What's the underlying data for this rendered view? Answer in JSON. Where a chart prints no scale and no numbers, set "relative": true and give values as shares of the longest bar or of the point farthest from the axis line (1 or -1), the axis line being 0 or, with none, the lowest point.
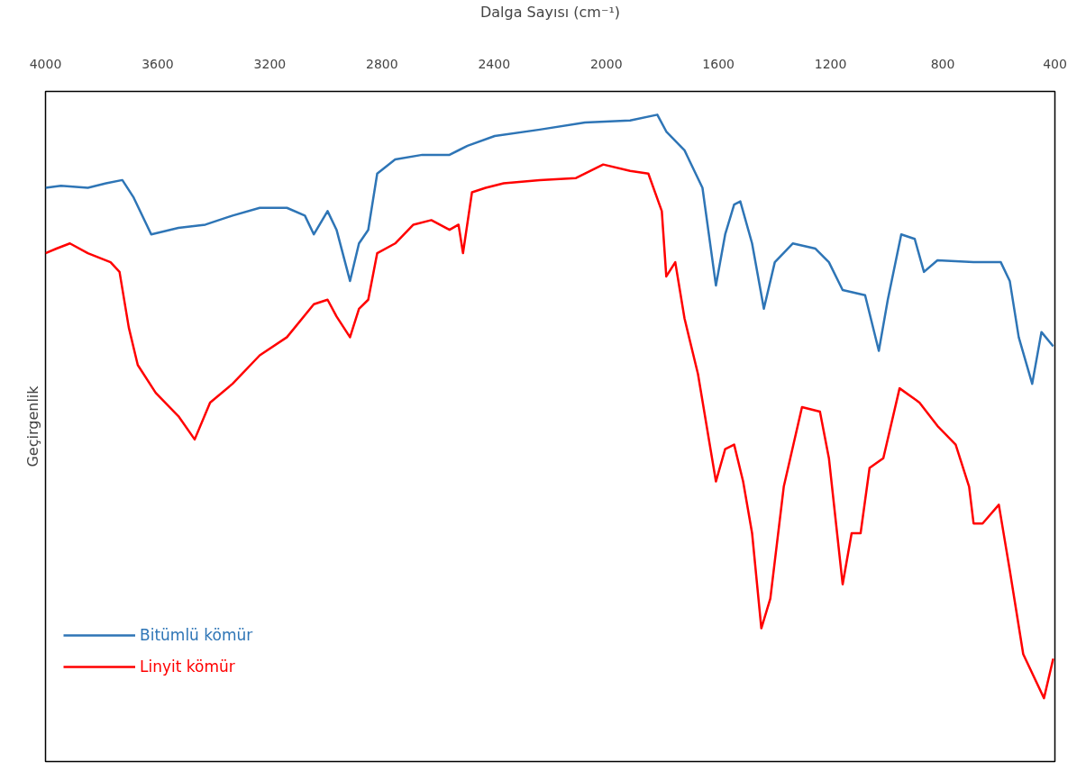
{
  "chart_data": {
    "type": "line",
    "xlabel": "Dalga Sayısı (cm⁻¹)",
    "ylabel": "Geçirgenlik",
    "relative": true,
    "xlim": [
      4000,
      400
    ],
    "xticks": [
      4000,
      3600,
      3200,
      2800,
      2400,
      2000,
      1600,
      1200,
      800,
      400
    ],
    "tick_labels": "x",
    "grid": false,
    "legend": "bottom left",
    "marker": "none",
    "line_style": "solid",
    "series": [
      {
        "name": "Bitümlü kömür",
        "color": "#2e75b6",
        "x": [
          4000,
          3945,
          3849,
          3784,
          3726,
          3687,
          3623,
          3526,
          3430,
          3333,
          3236,
          3139,
          3075,
          3043,
          2994,
          2962,
          2914,
          2882,
          2849,
          2817,
          2753,
          2656,
          2559,
          2495,
          2398,
          2237,
          2076,
          1915,
          1818,
          1786,
          1721,
          1657,
          1609,
          1576,
          1544,
          1522,
          1480,
          1438,
          1399,
          1335,
          1254,
          1206,
          1157,
          1077,
          1028,
          996,
          948,
          900,
          867,
          819,
          690,
          593,
          561,
          529,
          481,
          448,
          406
        ],
        "values": [
          0.887,
          0.89,
          0.887,
          0.894,
          0.899,
          0.873,
          0.815,
          0.825,
          0.83,
          0.844,
          0.856,
          0.856,
          0.844,
          0.815,
          0.851,
          0.822,
          0.743,
          0.801,
          0.822,
          0.909,
          0.931,
          0.938,
          0.938,
          0.952,
          0.967,
          0.977,
          0.988,
          0.991,
          1.0,
          0.974,
          0.945,
          0.887,
          0.736,
          0.815,
          0.861,
          0.866,
          0.801,
          0.7,
          0.772,
          0.801,
          0.793,
          0.772,
          0.729,
          0.721,
          0.635,
          0.714,
          0.815,
          0.808,
          0.757,
          0.775,
          0.772,
          0.772,
          0.743,
          0.656,
          0.584,
          0.664,
          0.642
        ]
      },
      {
        "name": "Linyit kömür",
        "color": "#ff0000",
        "x": [
          4000,
          3961,
          3913,
          3849,
          3768,
          3736,
          3703,
          3671,
          3607,
          3526,
          3468,
          3413,
          3333,
          3236,
          3139,
          3043,
          2994,
          2962,
          2914,
          2882,
          2849,
          2817,
          2753,
          2688,
          2624,
          2559,
          2527,
          2511,
          2479,
          2430,
          2366,
          2237,
          2108,
          2011,
          1915,
          1850,
          1802,
          1786,
          1754,
          1721,
          1673,
          1609,
          1576,
          1544,
          1512,
          1480,
          1447,
          1415,
          1367,
          1302,
          1238,
          1206,
          1157,
          1125,
          1093,
          1061,
          1012,
          954,
          883,
          819,
          754,
          706,
          690,
          658,
          600,
          561,
          513,
          439,
          406
        ],
        "values": [
          0.786,
          0.793,
          0.801,
          0.786,
          0.772,
          0.757,
          0.671,
          0.613,
          0.57,
          0.534,
          0.498,
          0.555,
          0.584,
          0.628,
          0.656,
          0.707,
          0.714,
          0.688,
          0.656,
          0.7,
          0.714,
          0.786,
          0.801,
          0.83,
          0.837,
          0.822,
          0.83,
          0.786,
          0.88,
          0.887,
          0.894,
          0.899,
          0.902,
          0.923,
          0.913,
          0.909,
          0.851,
          0.75,
          0.772,
          0.685,
          0.599,
          0.433,
          0.483,
          0.49,
          0.433,
          0.353,
          0.206,
          0.252,
          0.425,
          0.548,
          0.541,
          0.469,
          0.274,
          0.353,
          0.353,
          0.454,
          0.469,
          0.577,
          0.555,
          0.519,
          0.49,
          0.425,
          0.368,
          0.368,
          0.397,
          0.296,
          0.166,
          0.098,
          0.159
        ]
      }
    ]
  }
}
